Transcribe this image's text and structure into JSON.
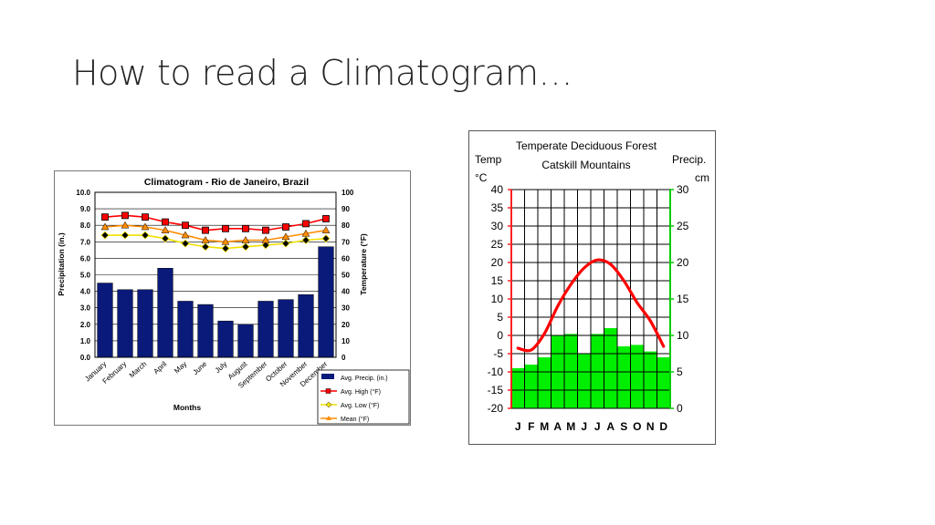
{
  "slide": {
    "title": "How to read a Climatogram…"
  },
  "chart_data": [
    {
      "type": "bar",
      "title": "Climatogram - Rio de Janeiro, Brazil",
      "xlabel": "Months",
      "ylabel": "Precipitation (in.)",
      "y2label": "Temperature (°F)",
      "ylim": [
        0,
        10
      ],
      "y2lim": [
        0,
        100
      ],
      "yticks": [
        "0.0",
        "1.0",
        "2.0",
        "3.0",
        "4.0",
        "5.0",
        "6.0",
        "7.0",
        "8.0",
        "9.0",
        "10.0"
      ],
      "y2ticks": [
        "0",
        "10",
        "20",
        "30",
        "40",
        "50",
        "60",
        "70",
        "80",
        "90",
        "100"
      ],
      "categories": [
        "January",
        "February",
        "March",
        "April",
        "May",
        "June",
        "July",
        "August",
        "September",
        "October",
        "November",
        "December"
      ],
      "series": [
        {
          "name": "Avg. Precip. (in.)",
          "kind": "bar",
          "axis": "left",
          "color": "#0a1a7a",
          "values": [
            4.5,
            4.1,
            4.1,
            5.4,
            3.4,
            3.2,
            2.2,
            2.0,
            3.4,
            3.5,
            3.8,
            6.7
          ]
        },
        {
          "name": "Avg. High (°F)",
          "kind": "line",
          "axis": "right",
          "color": "#ff0000",
          "marker": "square",
          "values": [
            85,
            86,
            85,
            82,
            80,
            77,
            78,
            78,
            77,
            79,
            81,
            84
          ]
        },
        {
          "name": "Avg. Low (°F)",
          "kind": "line",
          "axis": "right",
          "color": "#f0e000",
          "marker": "diamond",
          "values": [
            74,
            74,
            74,
            72,
            69,
            67,
            66,
            67,
            68,
            69,
            71,
            72
          ]
        },
        {
          "name": "Mean (°F)",
          "kind": "line",
          "axis": "right",
          "color": "#ff8c00",
          "marker": "triangle",
          "values": [
            79,
            80,
            79,
            77,
            74,
            71,
            70,
            71,
            71,
            73,
            75,
            77
          ]
        }
      ],
      "legend_position": "bottom-right",
      "grid": true
    },
    {
      "type": "bar",
      "title": "Temperate Deciduous Forest",
      "subtitle": "Catskill Mountains",
      "ylabel": "Temp °C",
      "y2label": "Precip. cm",
      "ylim": [
        -20,
        40
      ],
      "y2lim": [
        0,
        30
      ],
      "yticks": [
        "-20",
        "-15",
        "-10",
        "-5",
        "0",
        "5",
        "10",
        "15",
        "20",
        "25",
        "30",
        "35",
        "40"
      ],
      "y2ticks": [
        "0",
        "5",
        "10",
        "15",
        "20",
        "25",
        "30"
      ],
      "categories": [
        "J",
        "F",
        "M",
        "A",
        "M",
        "J",
        "J",
        "A",
        "S",
        "O",
        "N",
        "D"
      ],
      "series": [
        {
          "kind": "bar",
          "axis": "right",
          "color": "#00ee00",
          "values": [
            5.5,
            6,
            7,
            10,
            10.2,
            7.5,
            10.2,
            11,
            8.5,
            8.7,
            7.8,
            7
          ]
        },
        {
          "kind": "line",
          "axis": "left",
          "color": "#ff0000",
          "values": [
            -3.5,
            -4,
            0.5,
            8,
            14,
            18.5,
            20.7,
            19.5,
            15,
            9,
            4,
            -3
          ]
        }
      ],
      "grid": true
    }
  ]
}
